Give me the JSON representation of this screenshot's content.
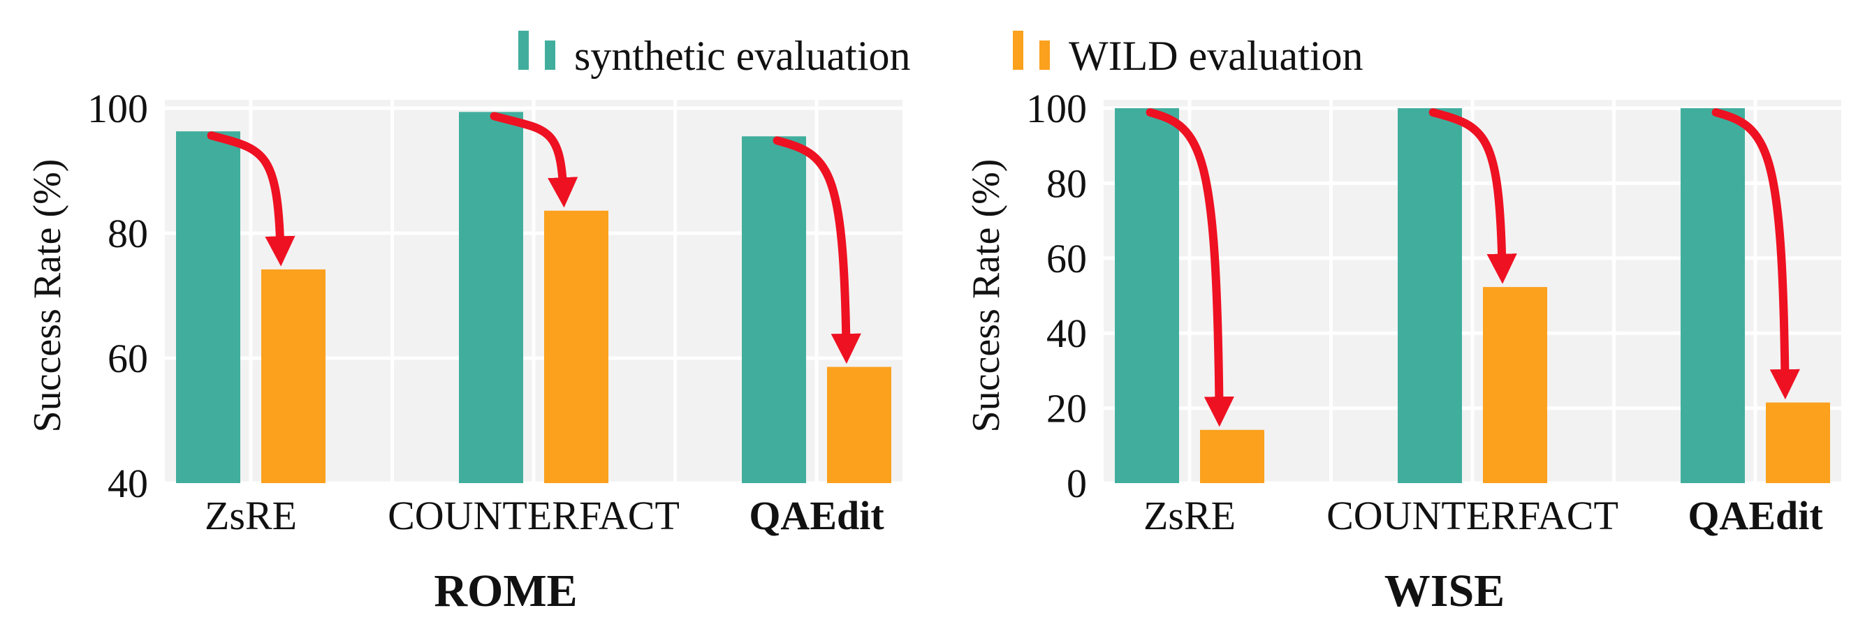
{
  "legend": {
    "items": [
      {
        "label": "synthetic evaluation",
        "color": "#41AE9D",
        "icon": "two-bar-swatch"
      },
      {
        "label": "WILD evaluation",
        "color": "#FBA11D",
        "icon": "two-bar-swatch"
      }
    ]
  },
  "colors": {
    "panel_bg": "#F2F2F2",
    "grid": "#FFFFFF",
    "arrow": "#EE1122"
  },
  "chart_data": [
    {
      "type": "bar",
      "title": "ROME",
      "ylabel": "Success Rate (%)",
      "ylim": [
        40,
        100
      ],
      "yticks": [
        40,
        60,
        80,
        100
      ],
      "categories": [
        "ZsRE",
        "COUNTERFACT",
        "QAEdit"
      ],
      "bold_categories": [
        "QAEdit"
      ],
      "series": [
        {
          "name": "synthetic evaluation",
          "values": [
            96.3,
            99.4,
            95.5
          ]
        },
        {
          "name": "WILD evaluation",
          "values": [
            74.2,
            83.6,
            58.6
          ]
        }
      ],
      "annotations": "red arrows from each synthetic bar down to the matching WILD bar",
      "grid": true
    },
    {
      "type": "bar",
      "title": "WISE",
      "ylabel": "Success Rate (%)",
      "ylim": [
        0,
        100
      ],
      "yticks": [
        0,
        20,
        40,
        60,
        80,
        100
      ],
      "categories": [
        "ZsRE",
        "COUNTERFACT",
        "QAEdit"
      ],
      "bold_categories": [
        "QAEdit"
      ],
      "series": [
        {
          "name": "synthetic evaluation",
          "values": [
            100,
            100,
            100
          ]
        },
        {
          "name": "WILD evaluation",
          "values": [
            14.2,
            52.3,
            21.5
          ]
        }
      ],
      "annotations": "red arrows from each synthetic bar down to the matching WILD bar",
      "grid": true
    }
  ]
}
